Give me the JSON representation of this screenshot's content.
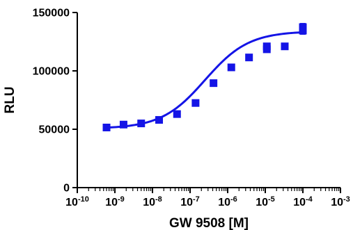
{
  "chart_data": {
    "type": "scatter",
    "xlabel": "GW 9508 [M]",
    "ylabel": "RLU",
    "x_scale": "log",
    "xlim": [
      1e-10,
      0.001
    ],
    "ylim": [
      0,
      150000
    ],
    "x_ticks": [
      {
        "value": 1e-10,
        "base": "10",
        "exp": "-10"
      },
      {
        "value": 1e-09,
        "base": "10",
        "exp": "-9"
      },
      {
        "value": 1e-08,
        "base": "10",
        "exp": "-8"
      },
      {
        "value": 1e-07,
        "base": "10",
        "exp": "-7"
      },
      {
        "value": 1e-06,
        "base": "10",
        "exp": "-6"
      },
      {
        "value": 1e-05,
        "base": "10",
        "exp": "-5"
      },
      {
        "value": 0.0001,
        "base": "10",
        "exp": "-4"
      },
      {
        "value": 0.001,
        "base": "10",
        "exp": "-3"
      }
    ],
    "y_ticks": [
      {
        "value": 0,
        "label": "0"
      },
      {
        "value": 50000,
        "label": "50000"
      },
      {
        "value": 100000,
        "label": "100000"
      },
      {
        "value": 150000,
        "label": "150000"
      }
    ],
    "grid": false,
    "color": "#1414e6",
    "points": [
      {
        "x": 6e-10,
        "y": 51500,
        "err": 800
      },
      {
        "x": 1.7e-09,
        "y": 54000,
        "err": 800
      },
      {
        "x": 5e-09,
        "y": 55000,
        "err": 800
      },
      {
        "x": 1.5e-08,
        "y": 58000,
        "err": 800
      },
      {
        "x": 4.5e-08,
        "y": 63000,
        "err": 800
      },
      {
        "x": 1.4e-07,
        "y": 72500,
        "err": 800
      },
      {
        "x": 4.2e-07,
        "y": 89500,
        "err": 1000
      },
      {
        "x": 1.25e-06,
        "y": 103000,
        "err": 1000
      },
      {
        "x": 3.7e-06,
        "y": 111500,
        "err": 1000
      },
      {
        "x": 1.1e-05,
        "y": 118500,
        "err": 1200
      },
      {
        "x": 1.1e-05,
        "y": 121000,
        "err": 1200
      },
      {
        "x": 3.3e-05,
        "y": 121000,
        "err": 1000
      },
      {
        "x": 0.0001,
        "y": 134500,
        "err": 2500
      },
      {
        "x": 0.0001,
        "y": 137500,
        "err": 2500
      }
    ],
    "fit": {
      "model": "four-parameter logistic",
      "bottom": 50500,
      "top": 134000,
      "log_ec50": -6.6,
      "hill": 0.75,
      "x_range": [
        6e-10,
        0.0001
      ]
    }
  }
}
